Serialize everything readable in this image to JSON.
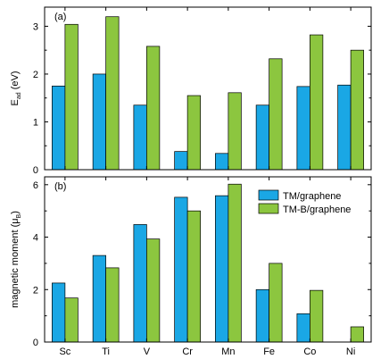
{
  "chart_data": [
    {
      "type": "bar",
      "panel_label": "(a)",
      "ylabel": "E",
      "ylabel_sub": "ad",
      "ylabel_unit": " (eV)",
      "categories": [
        "Sc",
        "Ti",
        "V",
        "Cr",
        "Mn",
        "Fe",
        "Co",
        "Ni"
      ],
      "ylim": [
        0,
        3.4
      ],
      "yticks": [
        0,
        1,
        2,
        3
      ],
      "series": [
        {
          "name": "TM/graphene",
          "values": [
            1.75,
            2.0,
            1.35,
            0.38,
            0.34,
            1.35,
            1.74,
            1.77
          ]
        },
        {
          "name": "TM-B/graphene",
          "values": [
            3.04,
            3.2,
            2.58,
            1.55,
            1.61,
            2.32,
            2.82,
            2.5
          ]
        }
      ],
      "grid": false
    },
    {
      "type": "bar",
      "panel_label": "(b)",
      "ylabel": "magnetic moment (μ",
      "ylabel_sub": "B",
      "ylabel_unit": ")",
      "categories": [
        "Sc",
        "Ti",
        "V",
        "Cr",
        "Mn",
        "Fe",
        "Co",
        "Ni"
      ],
      "ylim": [
        0,
        6.3
      ],
      "yticks": [
        0,
        2,
        4,
        6
      ],
      "series": [
        {
          "name": "TM/graphene",
          "values": [
            2.25,
            3.3,
            4.48,
            5.52,
            5.58,
            2.0,
            1.08,
            0
          ]
        },
        {
          "name": "TM-B/graphene",
          "values": [
            1.68,
            2.83,
            3.93,
            5.0,
            6.02,
            3.0,
            1.97,
            0.58
          ]
        }
      ],
      "legend_position": "top-right",
      "grid": false
    }
  ],
  "colors": {
    "TM/graphene": "#1aa7e5",
    "TM-B/graphene": "#8cc63f"
  }
}
